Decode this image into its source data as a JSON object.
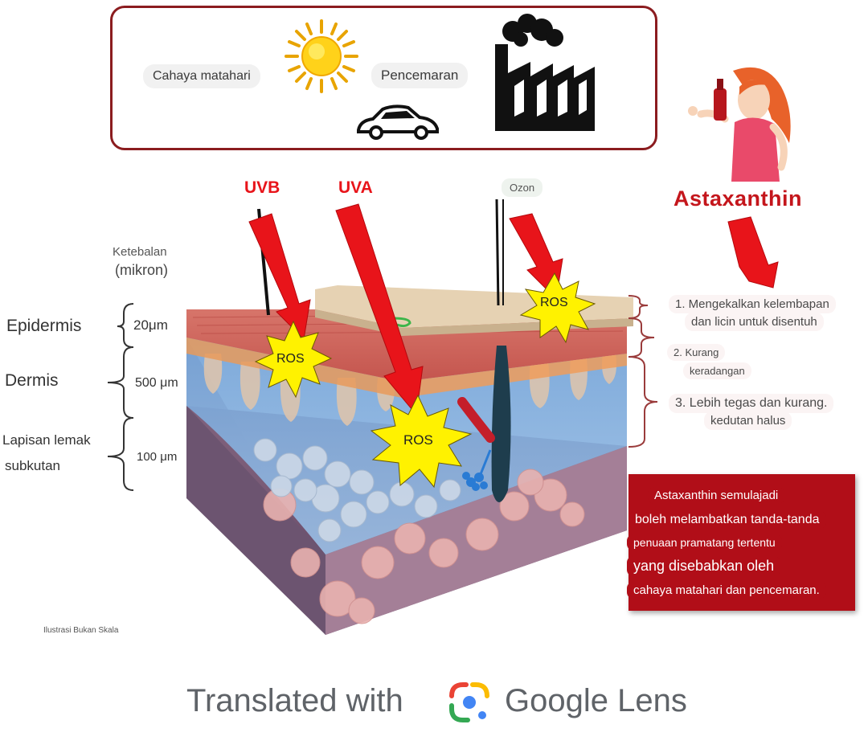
{
  "sources": {
    "sunlight": "Cahaya matahari",
    "pollution": "Pencemaran"
  },
  "rays": {
    "uvb": "UVB",
    "uva": "UVA",
    "ozone": "Ozon"
  },
  "ros": [
    "ROS",
    "ROS",
    "ROS"
  ],
  "product": {
    "title": "Astaxanthin"
  },
  "thickness": {
    "header_line1": "Ketebalan",
    "header_line2": "(mikron)",
    "epidermis_value": "20μm",
    "dermis_value": "500 μm",
    "fat_value": "100 μm"
  },
  "layers": {
    "epidermis": "Epidermis",
    "dermis": "Dermis",
    "fat_line1": "Lapisan lemak",
    "fat_line2": "subkutan"
  },
  "benefits": {
    "b1_line1": "1. Mengekalkan kelembapan",
    "b1_line2": "dan licin untuk disentuh",
    "b2_line1": "2. Kurang",
    "b2_line2": "keradangan",
    "b3_line1": "3. Lebih tegas dan kurang.",
    "b3_line2": "kedutan halus"
  },
  "red_box": {
    "line1": "Astaxanthin semulajadi",
    "line2": "boleh melambatkan tanda-tanda",
    "line3": "penuaan pramatang tertentu",
    "line4": "yang disebabkan oleh",
    "line5": "cahaya matahari dan pencemaran."
  },
  "note": "Ilustrasi Bukan Skala",
  "footer": {
    "text": "Translated with",
    "brand": "Google Lens"
  },
  "colors": {
    "arrow_red": "#e8141a",
    "title_red": "#c4161c",
    "box_red": "#b10e18",
    "ros_yellow": "#fff200"
  }
}
